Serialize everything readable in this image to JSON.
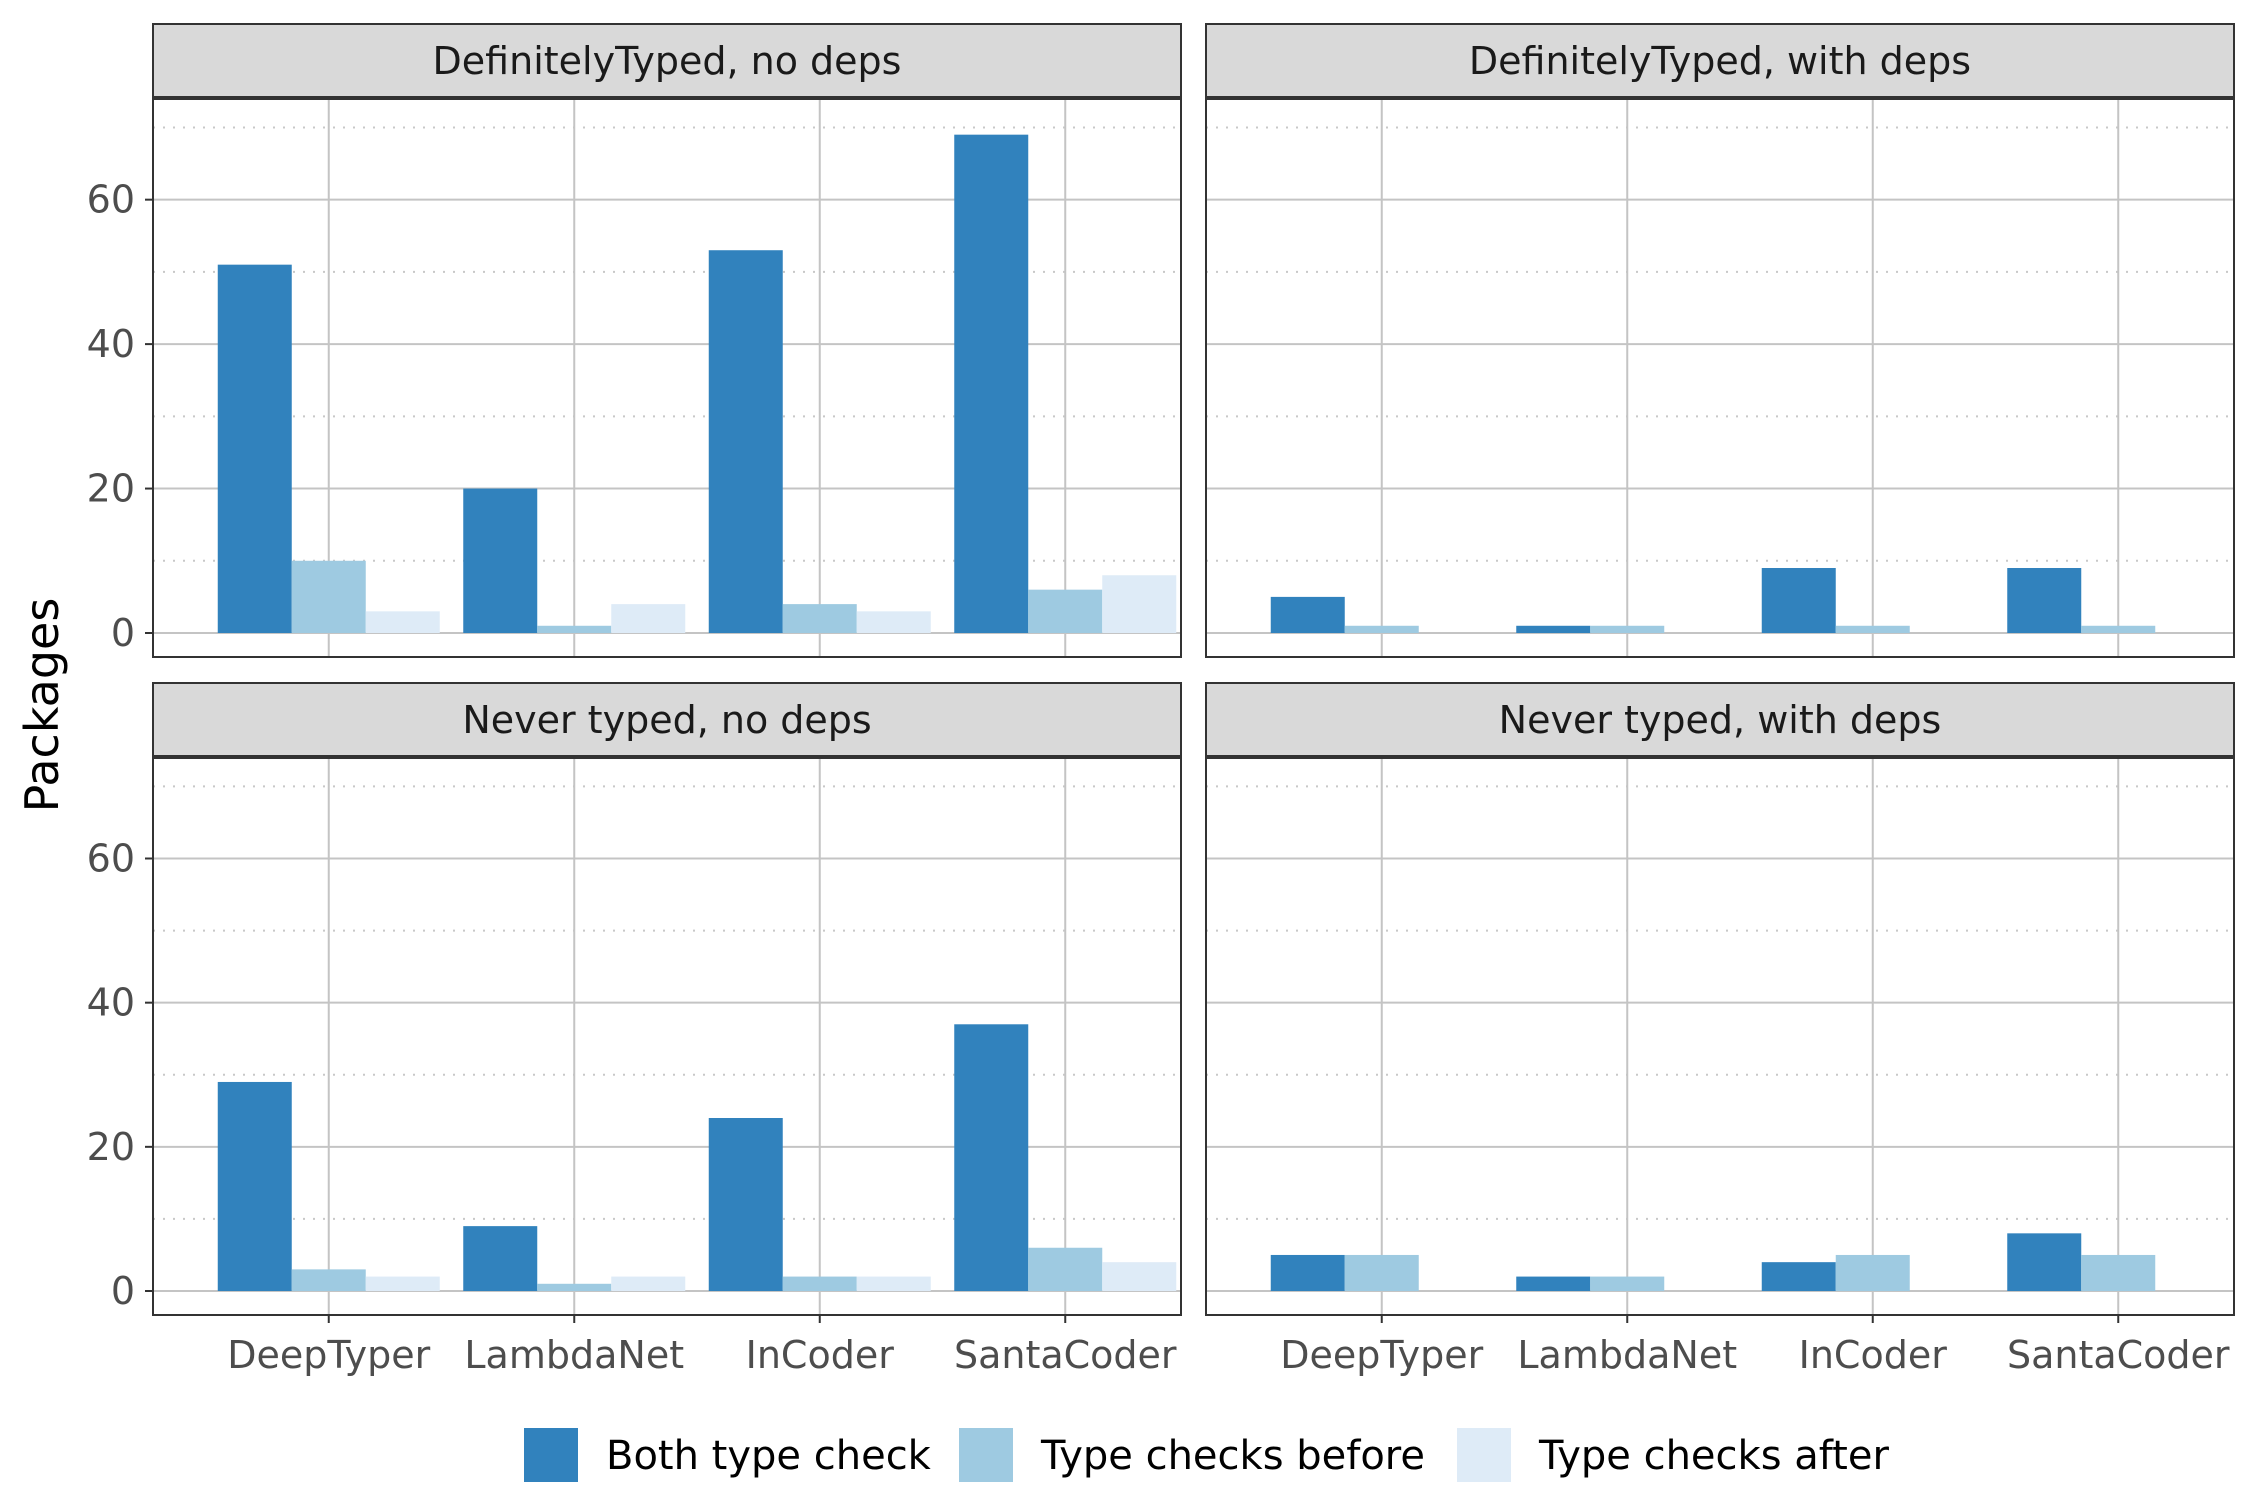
{
  "chart_data": {
    "type": "bar",
    "layout": "facet-grid 2x2",
    "ylabel": "Packages",
    "xlabel": "",
    "ylim": [
      0,
      72
    ],
    "yticks": [
      0,
      20,
      40,
      60
    ],
    "grid": true,
    "legend_position": "bottom",
    "categories": [
      "DeepTyper",
      "LambdaNet",
      "InCoder",
      "SantaCoder"
    ],
    "series_names": [
      "Both type check",
      "Type checks before",
      "Type checks after"
    ],
    "colors": [
      "#3182bd",
      "#9ecae1",
      "#deebf7"
    ],
    "panels": [
      {
        "title": "DefinitelyTyped, no deps",
        "series": [
          {
            "name": "Both type check",
            "values": [
              51,
              20,
              53,
              69
            ]
          },
          {
            "name": "Type checks before",
            "values": [
              10,
              1,
              4,
              6
            ]
          },
          {
            "name": "Type checks after",
            "values": [
              3,
              4,
              3,
              8
            ]
          }
        ]
      },
      {
        "title": "DefinitelyTyped, with deps",
        "series": [
          {
            "name": "Both type check",
            "values": [
              5,
              1,
              9,
              9
            ]
          },
          {
            "name": "Type checks before",
            "values": [
              1,
              1,
              1,
              1
            ]
          },
          {
            "name": "Type checks after",
            "values": [
              0,
              0,
              0,
              0
            ]
          }
        ]
      },
      {
        "title": "Never typed, no deps",
        "series": [
          {
            "name": "Both type check",
            "values": [
              29,
              9,
              24,
              37
            ]
          },
          {
            "name": "Type checks before",
            "values": [
              3,
              1,
              2,
              6
            ]
          },
          {
            "name": "Type checks after",
            "values": [
              2,
              2,
              2,
              4
            ]
          }
        ]
      },
      {
        "title": "Never typed, with deps",
        "series": [
          {
            "name": "Both type check",
            "values": [
              5,
              2,
              4,
              8
            ]
          },
          {
            "name": "Type checks before",
            "values": [
              5,
              2,
              5,
              5
            ]
          },
          {
            "name": "Type checks after",
            "values": [
              0,
              0,
              0,
              0
            ]
          }
        ]
      }
    ]
  }
}
